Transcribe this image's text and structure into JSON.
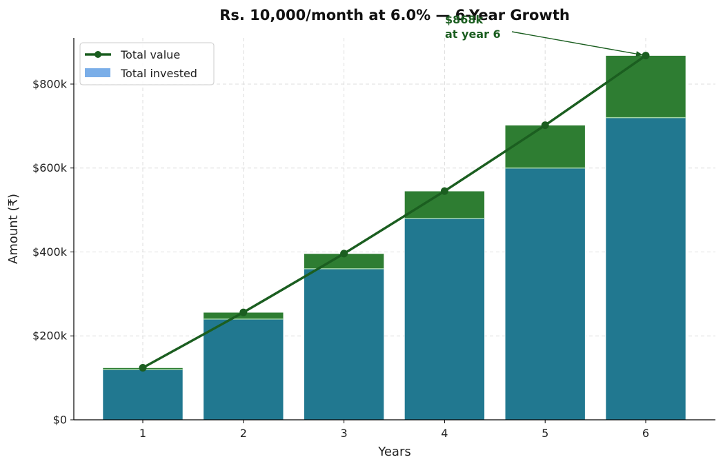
{
  "chart_data": {
    "type": "bar",
    "title": "Rs. 10,000/month at 6.0% — 6-Year Growth",
    "xlabel": "Years",
    "ylabel": "Amount (₹)",
    "categories": [
      "1",
      "2",
      "3",
      "4",
      "5",
      "6"
    ],
    "ylim": [
      0,
      910000
    ],
    "yticks": [
      0,
      200000,
      400000,
      600000,
      800000
    ],
    "ytick_labels": [
      "$0",
      "$200k",
      "$400k",
      "$600k",
      "$800k"
    ],
    "grid": true,
    "legend_position": "top-left",
    "series": [
      {
        "name": "Total invested",
        "kind": "bar",
        "color": "#7aaee8",
        "values": [
          120000,
          240000,
          360000,
          480000,
          600000,
          720000
        ]
      },
      {
        "name": "Total value",
        "kind": "line",
        "color": "#1b5e20",
        "values": [
          124000,
          256000,
          396000,
          545000,
          702000,
          868000
        ]
      }
    ],
    "colors": {
      "invested_bar": "#217890",
      "growth_bar": "#2e7d32",
      "line": "#1b5e20"
    },
    "annotation": {
      "text_line1": "$868k",
      "text_line2": "at year 6",
      "category": "6",
      "value": 868000,
      "color": "#1b5e20"
    }
  }
}
